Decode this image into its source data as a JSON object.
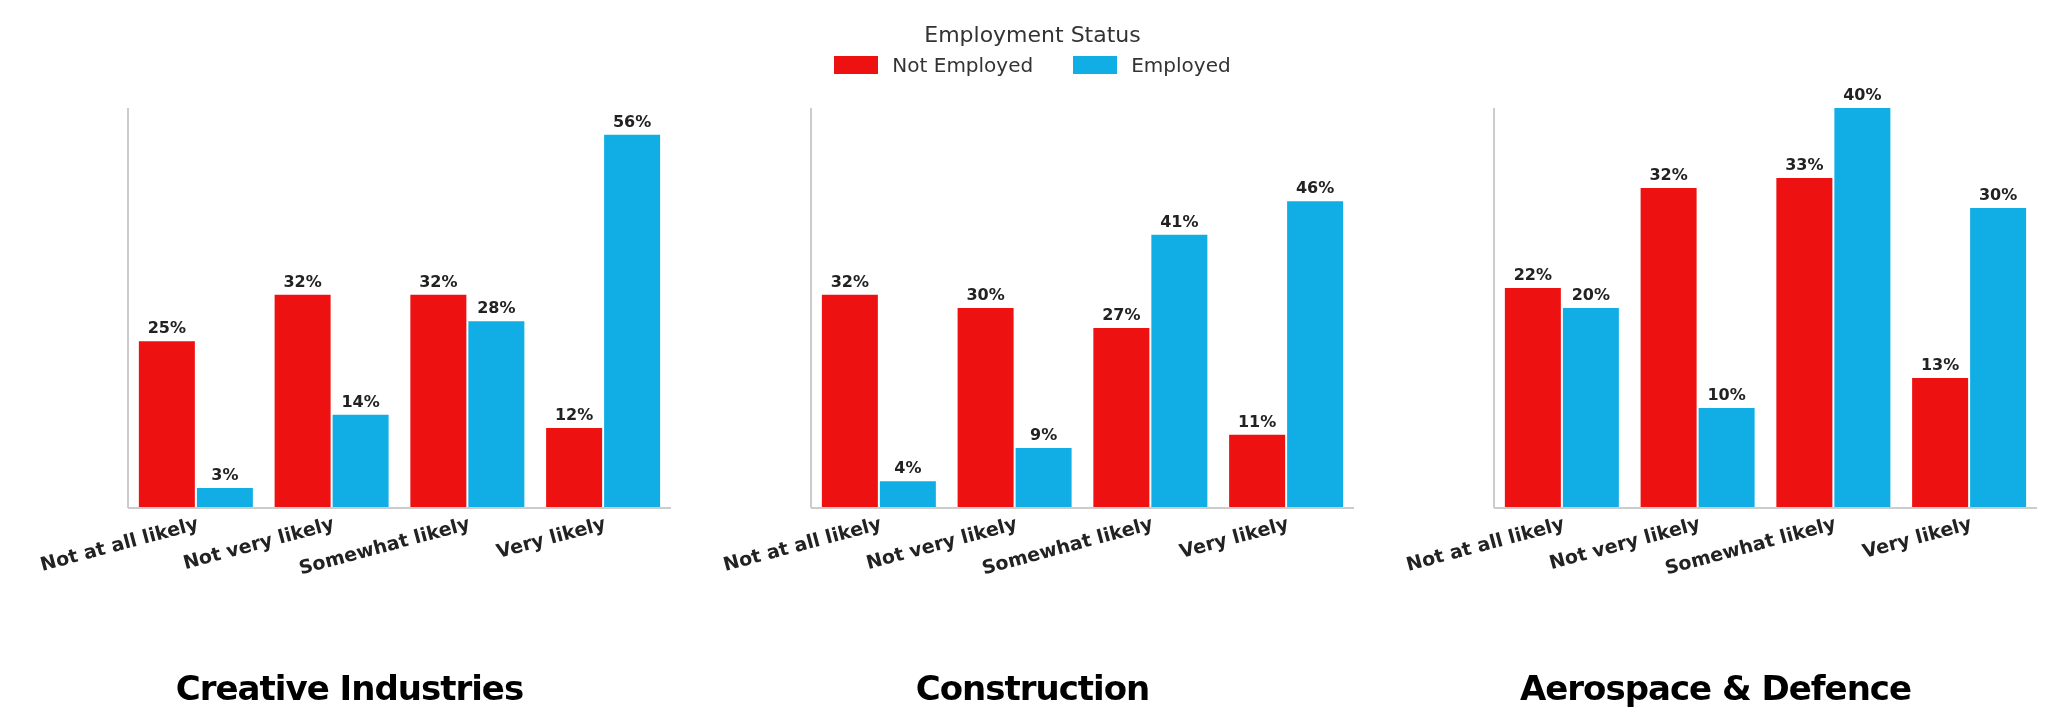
{
  "chart_data": [
    {
      "type": "bar",
      "title": "Creative Industries",
      "categories": [
        "Not at all likely",
        "Not very likely",
        "Somewhat likely",
        "Very likely"
      ],
      "series": [
        {
          "color": "#ee1111",
          "values": [
            25,
            32,
            32,
            12
          ],
          "value_labels": [
            "25%",
            "32%",
            "32%",
            "12%"
          ]
        },
        {
          "color": "#10aee4",
          "values": [
            3,
            14,
            28,
            56
          ],
          "value_labels": [
            "3%",
            "14%",
            "28%",
            "56%"
          ]
        }
      ],
      "tick_labels": "x"
    },
    {
      "type": "bar",
      "title": "Construction",
      "legend_title": "Employment Status",
      "legend": "top",
      "categories": [
        "Not at all likely",
        "Not very likely",
        "Somewhat likely",
        "Very likely"
      ],
      "series": [
        {
          "name": "Not Employed",
          "color": "#ee1111",
          "values": [
            32,
            30,
            27,
            11
          ],
          "value_labels": [
            "32%",
            "30%",
            "27%",
            "11%"
          ]
        },
        {
          "name": "Employed",
          "color": "#10aee4",
          "values": [
            4,
            9,
            41,
            46
          ],
          "value_labels": [
            "4%",
            "9%",
            "41%",
            "46%"
          ]
        }
      ],
      "tick_labels": "x"
    },
    {
      "type": "bar",
      "title": "Aerospace & Defence",
      "categories": [
        "Not at all likely",
        "Not very likely",
        "Somewhat likely",
        "Very likely"
      ],
      "series": [
        {
          "color": "#ee1111",
          "values": [
            22,
            32,
            33,
            13
          ],
          "value_labels": [
            "22%",
            "32%",
            "33%",
            "13%"
          ]
        },
        {
          "color": "#10aee4",
          "values": [
            20,
            10,
            40,
            30
          ],
          "value_labels": [
            "20%",
            "10%",
            "40%",
            "30%"
          ]
        }
      ],
      "tick_labels": "x"
    }
  ]
}
